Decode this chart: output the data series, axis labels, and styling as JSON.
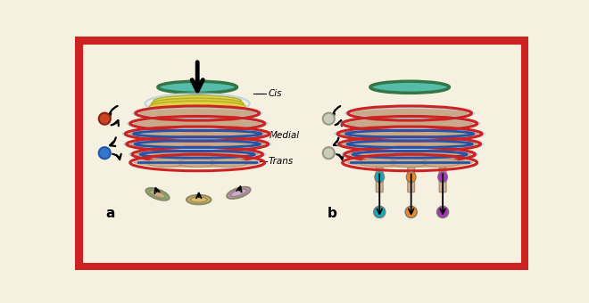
{
  "bg_color": "#f5f0e0",
  "border_color": "#cc2222",
  "border_width": 8,
  "label_a": "a",
  "label_b": "b",
  "label_trans": "Trans",
  "label_medial": "Medial",
  "label_cis": "Cis",
  "colors": {
    "blue_stripe": "#2255aa",
    "light_blue_outer": "#aac8dd",
    "red_outline": "#cc2222",
    "tan_body": "#c8aa88",
    "yellow_layer": "#ddcc44",
    "cis_green": "#337744",
    "cis_teal": "#55bbaa",
    "vesicle_blue": "#3377cc",
    "vesicle_red": "#cc4422",
    "vesicle_green": "#889966",
    "vesicle_tan": "#ccaa77",
    "vesicle_purple": "#aa77aa",
    "bubble_teal": "#11aabb",
    "bubble_orange": "#ee8822",
    "bubble_purple": "#aa33bb",
    "gray_circle": "#bbbbaa",
    "arrow_color": "#111111"
  }
}
